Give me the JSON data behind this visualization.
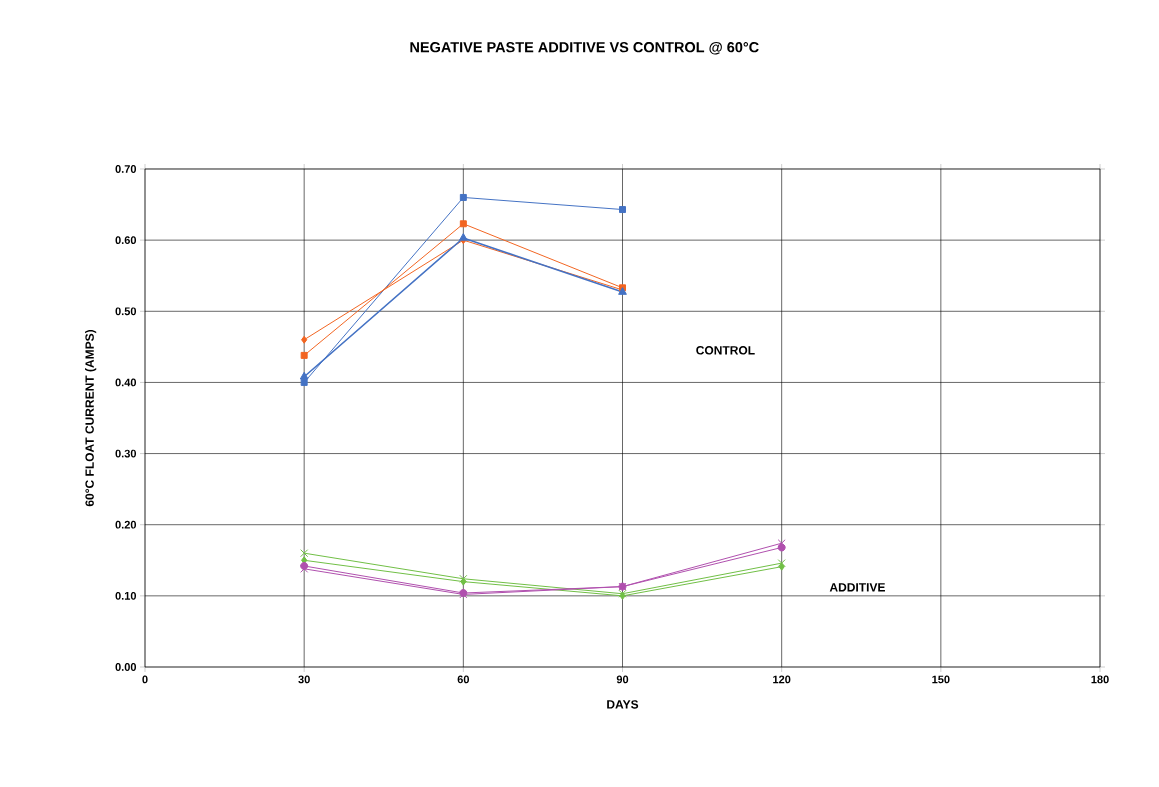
{
  "chart_data": {
    "type": "line",
    "title": "NEGATIVE PASTE ADDITIVE VS CONTROL @ 60°C",
    "xlabel": "DAYS",
    "ylabel": "60°C FLOAT CURRENT (AMPS)",
    "xlim": [
      0,
      180
    ],
    "xticks": [
      0,
      30,
      60,
      90,
      120,
      150,
      180
    ],
    "ylim": [
      0,
      0.7
    ],
    "yticks": [
      {
        "value": 0,
        "label": "0.00"
      },
      {
        "value": 0.1,
        "label": "0.10"
      },
      {
        "value": 0.2,
        "label": "0.20"
      },
      {
        "value": 0.3,
        "label": "0.30"
      },
      {
        "value": 0.4,
        "label": "0.40"
      },
      {
        "value": 0.5,
        "label": "0.50"
      },
      {
        "value": 0.6,
        "label": "0.60"
      },
      {
        "value": 0.7,
        "label": "0.70"
      }
    ],
    "grid": true,
    "line_style": "solid",
    "series": [
      {
        "color": "#4472c4",
        "marker": "square",
        "x": [
          30,
          60,
          90
        ],
        "values": [
          0.4,
          0.66,
          0.643
        ]
      },
      {
        "color": "#4472c4",
        "marker": "triangle",
        "x": [
          30,
          60,
          90
        ],
        "values": [
          0.408,
          0.603,
          0.527
        ]
      },
      {
        "color": "#f26522",
        "marker": "square",
        "x": [
          30,
          60,
          90
        ],
        "values": [
          0.438,
          0.623,
          0.533
        ]
      },
      {
        "color": "#f26522",
        "marker": "diamond",
        "x": [
          30,
          60,
          90
        ],
        "values": [
          0.46,
          0.6,
          0.53
        ]
      },
      {
        "color": "#70bf45",
        "marker": "cross",
        "x": [
          30,
          60,
          90,
          120
        ],
        "values": [
          0.16,
          0.124,
          0.103,
          0.146
        ]
      },
      {
        "color": "#70bf45",
        "marker": "diamond",
        "x": [
          30,
          60,
          90,
          120
        ],
        "values": [
          0.15,
          0.12,
          0.1,
          0.141
        ]
      },
      {
        "color": "#b04fae",
        "marker": "cross",
        "x": [
          30,
          60,
          90,
          120
        ],
        "values": [
          0.138,
          0.102,
          0.113,
          0.174
        ]
      },
      {
        "color": "#b04fae",
        "marker": "circle",
        "x": [
          30,
          60,
          90,
          120
        ],
        "values": [
          0.142,
          0.104,
          0.113,
          0.168
        ]
      }
    ],
    "annotations": [
      "CONTROL",
      "ADDITIVE"
    ]
  }
}
